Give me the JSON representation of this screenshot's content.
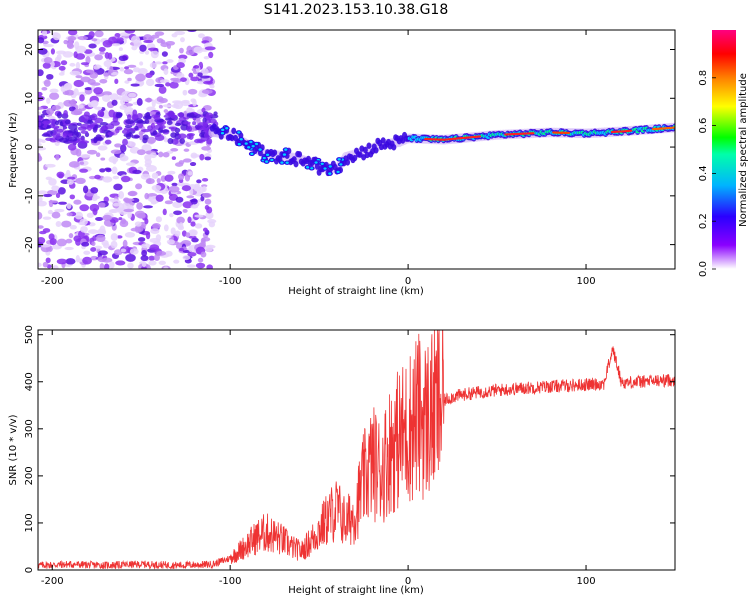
{
  "chart_data": [
    {
      "type": "heatmap",
      "title": "S141.2023.153.10.38.G18",
      "xlabel": "Height of straight line (km)",
      "ylabel": "Frequency (Hz)",
      "xlim": [
        -208,
        150
      ],
      "ylim": [
        -25,
        24
      ],
      "xticks": [
        -200,
        -100,
        0,
        100
      ],
      "yticks": [
        -20,
        -10,
        0,
        10,
        20
      ],
      "colorbar": {
        "label": "Normalized spectral amplitude",
        "range": [
          0,
          1
        ],
        "ticks": [
          0.0,
          0.2,
          0.4,
          0.6,
          0.8
        ]
      },
      "ridge": [
        {
          "x": -108,
          "y": 3.0
        },
        {
          "x": -100,
          "y": 2.5
        },
        {
          "x": -90,
          "y": 0.5
        },
        {
          "x": -80,
          "y": -1.5
        },
        {
          "x": -70,
          "y": -1.8
        },
        {
          "x": -60,
          "y": -2.5
        },
        {
          "x": -50,
          "y": -4.0
        },
        {
          "x": -40,
          "y": -4.5
        },
        {
          "x": -35,
          "y": -2.0
        },
        {
          "x": -25,
          "y": -1.0
        },
        {
          "x": -15,
          "y": 0.5
        },
        {
          "x": -5,
          "y": 1.0
        },
        {
          "x": 0,
          "y": 1.8
        },
        {
          "x": 20,
          "y": 1.5
        },
        {
          "x": 50,
          "y": 2.5
        },
        {
          "x": 80,
          "y": 3.0
        },
        {
          "x": 100,
          "y": 2.8
        },
        {
          "x": 120,
          "y": 3.2
        },
        {
          "x": 150,
          "y": 4.0
        }
      ]
    },
    {
      "type": "line",
      "xlabel": "Height of straight line (km)",
      "ylabel": "SNR (10 * v/v)",
      "xlim": [
        -208,
        150
      ],
      "ylim": [
        0,
        510
      ],
      "xticks": [
        -200,
        -100,
        0,
        100
      ],
      "yticks": [
        0,
        100,
        200,
        300,
        400,
        500
      ],
      "series": [
        {
          "name": "SNR",
          "color": "#ee3333",
          "x": [
            -208,
            -190,
            -170,
            -150,
            -130,
            -110,
            -100,
            -95,
            -90,
            -85,
            -80,
            -75,
            -70,
            -65,
            -60,
            -55,
            -50,
            -45,
            -40,
            -35,
            -30,
            -25,
            -20,
            -15,
            -10,
            -5,
            0,
            5,
            10,
            15,
            20,
            25,
            30,
            40,
            50,
            60,
            70,
            80,
            90,
            100,
            110,
            115,
            120,
            130,
            140,
            150
          ],
          "values": [
            10,
            12,
            10,
            12,
            10,
            12,
            25,
            40,
            55,
            70,
            80,
            72,
            62,
            48,
            40,
            60,
            85,
            110,
            130,
            100,
            120,
            190,
            230,
            210,
            260,
            280,
            300,
            330,
            320,
            340,
            360,
            368,
            372,
            378,
            382,
            385,
            388,
            390,
            392,
            394,
            396,
            470,
            398,
            400,
            402,
            404
          ]
        }
      ]
    }
  ]
}
